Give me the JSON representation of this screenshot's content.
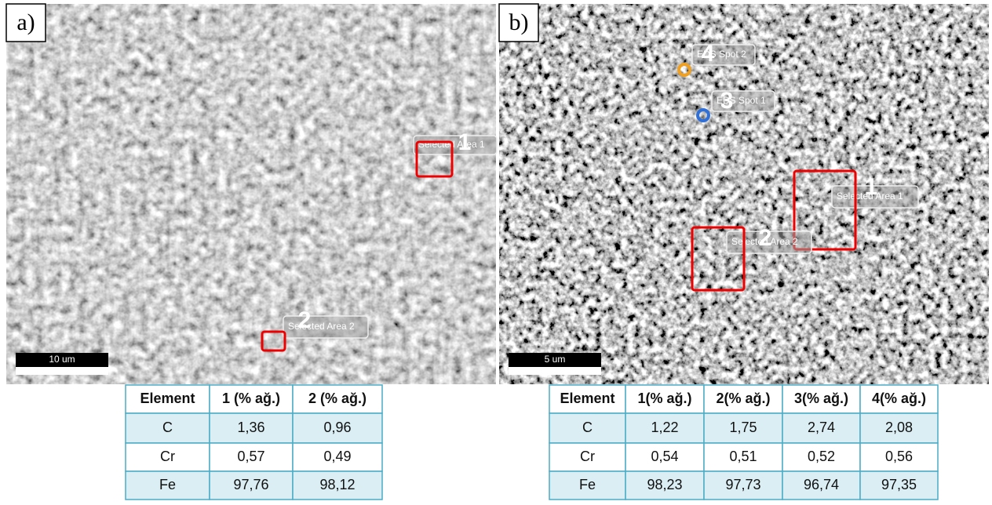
{
  "panels": [
    {
      "label": "a)",
      "scale_bar": "10 um",
      "annotations": [
        {
          "number": "1",
          "label": "Selected Area 1"
        },
        {
          "number": "2",
          "label": "Selected Area 2"
        }
      ],
      "table": {
        "header": [
          "Element",
          "1 (% ağ.)",
          "2 (% ağ.)"
        ],
        "rows": [
          [
            "C",
            "1,36",
            "0,96"
          ],
          [
            "Cr",
            "0,57",
            "0,49"
          ],
          [
            "Fe",
            "97,76",
            "98,12"
          ]
        ]
      }
    },
    {
      "label": "b)",
      "scale_bar": "5 um",
      "annotations": [
        {
          "number": "1",
          "label": "Selected Area 1"
        },
        {
          "number": "2",
          "label": "Selected Area 2"
        },
        {
          "number": "3",
          "label": "EDS Spot 1"
        },
        {
          "number": "4",
          "label": "EDS Spot 2"
        }
      ],
      "table": {
        "header": [
          "Element",
          "1(% ağ.)",
          "2(% ağ.)",
          "3(% ağ.)",
          "4(% ağ.)"
        ],
        "rows": [
          [
            "C",
            "1,22",
            "1,75",
            "2,74",
            "2,08"
          ],
          [
            "Cr",
            "0,54",
            "0,51",
            "0,52",
            "0,56"
          ],
          [
            "Fe",
            "98,23",
            "97,73",
            "96,74",
            "97,35"
          ]
        ]
      }
    }
  ]
}
